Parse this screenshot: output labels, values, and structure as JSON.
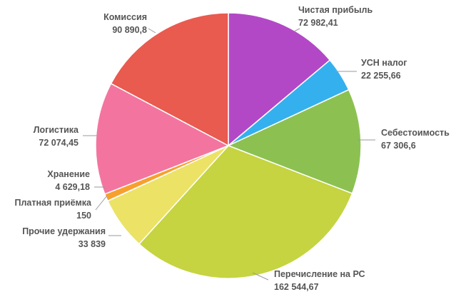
{
  "chart_data": {
    "type": "pie",
    "title": "",
    "slices": [
      {
        "label": "Чистая прибыль",
        "value": 72982.41,
        "value_text": "72 982,41",
        "color": "#b348c6"
      },
      {
        "label": "УСН налог",
        "value": 22255.66,
        "value_text": "22 255,66",
        "color": "#35b0ee"
      },
      {
        "label": "Себестоимость",
        "value": 67306.6,
        "value_text": "67 306,6",
        "color": "#8cc152"
      },
      {
        "label": "Перечисление на РС",
        "value": 162544.67,
        "value_text": "162 544,67",
        "color": "#c5d440"
      },
      {
        "label": "Прочие удержания",
        "value": 33839,
        "value_text": "33 839",
        "color": "#ece265"
      },
      {
        "label": "Платная приёмка",
        "value": 150,
        "value_text": "150",
        "color": "#f16a4e"
      },
      {
        "label": "Хранение",
        "value": 4629.18,
        "value_text": "4 629,18",
        "color": "#f7a02d"
      },
      {
        "label": "Логистика",
        "value": 72074.45,
        "value_text": "72 074,45",
        "color": "#f3759f"
      },
      {
        "label": "Комиссия",
        "value": 90890.8,
        "value_text": "90 890,8",
        "color": "#e95a4f"
      }
    ]
  }
}
